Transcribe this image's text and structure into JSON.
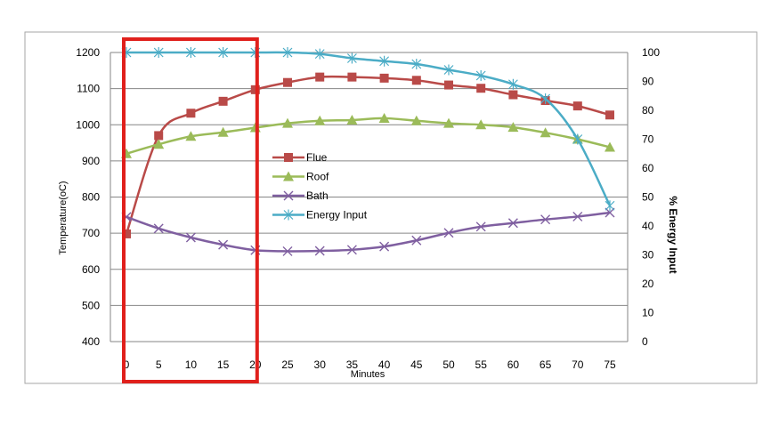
{
  "chart_data": {
    "type": "line",
    "xlabel": "Minutes",
    "ylabel": "Temperature(oC)",
    "y2label": "% Energy Input",
    "x": [
      0,
      5,
      10,
      15,
      20,
      25,
      30,
      35,
      40,
      45,
      50,
      55,
      60,
      65,
      70,
      75
    ],
    "ylim": [
      400,
      1200
    ],
    "yticks": [
      400,
      500,
      600,
      700,
      800,
      900,
      1000,
      1100,
      1200
    ],
    "y2lim": [
      0,
      100
    ],
    "y2ticks": [
      0,
      10,
      20,
      30,
      40,
      50,
      60,
      70,
      80,
      90,
      100
    ],
    "grid": true,
    "legend_position": "center",
    "highlight": {
      "x_range": [
        0,
        20
      ],
      "color": "#e0201c"
    },
    "series": [
      {
        "name": "Flue",
        "axis": "left",
        "color": "#b94a48",
        "marker": "square",
        "values": [
          698,
          970,
          1032,
          1065,
          1097,
          1117,
          1132,
          1132,
          1129,
          1123,
          1110,
          1101,
          1083,
          1067,
          1052,
          1027
        ]
      },
      {
        "name": "Roof",
        "axis": "left",
        "color": "#9bbb59",
        "marker": "triangle",
        "values": [
          920,
          946,
          968,
          979,
          992,
          1004,
          1011,
          1013,
          1018,
          1011,
          1004,
          1000,
          993,
          978,
          960,
          938
        ]
      },
      {
        "name": "Bath",
        "axis": "left",
        "color": "#7f5fa0",
        "marker": "x",
        "values": [
          745,
          713,
          688,
          668,
          653,
          650,
          651,
          654,
          663,
          680,
          701,
          718,
          728,
          738,
          746,
          757
        ]
      },
      {
        "name": "Energy Input",
        "axis": "right",
        "color": "#4bacc6",
        "marker": "star",
        "values": [
          100,
          100,
          100,
          100,
          100,
          100,
          99.5,
          98,
          97,
          96,
          94,
          92,
          89,
          84,
          70,
          47
        ]
      }
    ]
  }
}
